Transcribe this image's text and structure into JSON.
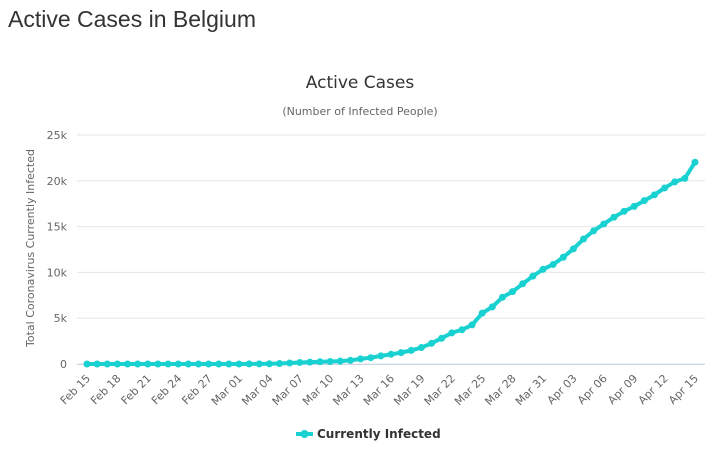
{
  "page": {
    "heading": "Active Cases in Belgium"
  },
  "chart_data": {
    "type": "line",
    "title": "Active Cases",
    "subtitle": "(Number of Infected People)",
    "xlabel": "",
    "ylabel": "Total Coronavirus Currently Infected",
    "ylim": [
      0,
      25000
    ],
    "yticks": [
      0,
      5000,
      10000,
      15000,
      20000,
      25000
    ],
    "ytick_labels": [
      "0",
      "5k",
      "10k",
      "15k",
      "20k",
      "25k"
    ],
    "categories": [
      "Feb 15",
      "Feb 16",
      "Feb 17",
      "Feb 18",
      "Feb 19",
      "Feb 20",
      "Feb 21",
      "Feb 22",
      "Feb 23",
      "Feb 24",
      "Feb 25",
      "Feb 26",
      "Feb 27",
      "Feb 28",
      "Feb 29",
      "Mar 01",
      "Mar 02",
      "Mar 03",
      "Mar 04",
      "Mar 05",
      "Mar 06",
      "Mar 07",
      "Mar 08",
      "Mar 09",
      "Mar 10",
      "Mar 11",
      "Mar 12",
      "Mar 13",
      "Mar 14",
      "Mar 15",
      "Mar 16",
      "Mar 17",
      "Mar 18",
      "Mar 19",
      "Mar 20",
      "Mar 21",
      "Mar 22",
      "Mar 23",
      "Mar 24",
      "Mar 25",
      "Mar 26",
      "Mar 27",
      "Mar 28",
      "Mar 29",
      "Mar 30",
      "Mar 31",
      "Apr 01",
      "Apr 02",
      "Apr 03",
      "Apr 04",
      "Apr 05",
      "Apr 06",
      "Apr 07",
      "Apr 08",
      "Apr 09",
      "Apr 10",
      "Apr 11",
      "Apr 12",
      "Apr 13",
      "Apr 14",
      "Apr 15"
    ],
    "xtick_labels": [
      "Feb 15",
      "Feb 18",
      "Feb 21",
      "Feb 24",
      "Feb 27",
      "Mar 01",
      "Mar 04",
      "Mar 07",
      "Mar 10",
      "Mar 13",
      "Mar 16",
      "Mar 19",
      "Mar 22",
      "Mar 25",
      "Mar 28",
      "Mar 31",
      "Apr 03",
      "Apr 06",
      "Apr 09",
      "Apr 12",
      "Apr 15"
    ],
    "series": [
      {
        "name": "Currently Infected",
        "color": "#1ad1d1",
        "values": [
          1,
          1,
          1,
          1,
          1,
          1,
          1,
          1,
          1,
          1,
          1,
          1,
          1,
          1,
          1,
          2,
          8,
          13,
          23,
          50,
          109,
          169,
          200,
          239,
          267,
          314,
          399,
          559,
          689,
          886,
          1058,
          1243,
          1486,
          1795,
          2257,
          2815,
          3401,
          3737,
          4269,
          5552,
          6235,
          7284,
          7902,
          8757,
          9594,
          10335,
          10869,
          11651,
          12575,
          13646,
          14539,
          15288,
          16027,
          16668,
          17209,
          17840,
          18468,
          19220,
          19878,
          20270,
          22030
        ]
      }
    ],
    "legend": {
      "position": "bottom-center"
    },
    "grid": true
  }
}
